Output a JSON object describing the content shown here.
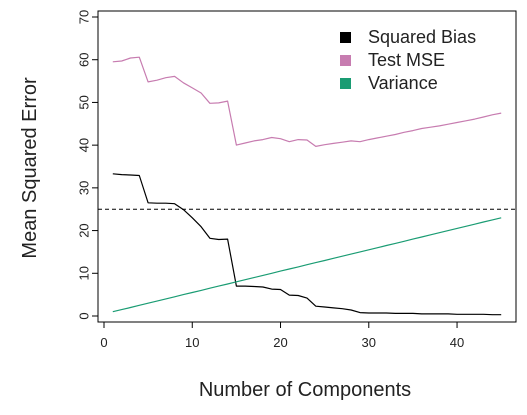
{
  "chart_data": {
    "type": "line",
    "xlabel": "Number of Components",
    "ylabel": "Mean Squared Error",
    "xlim": [
      0,
      46
    ],
    "ylim": [
      0,
      70
    ],
    "xticks": [
      0,
      10,
      20,
      30,
      40
    ],
    "yticks": [
      0,
      10,
      20,
      30,
      40,
      50,
      60,
      70
    ],
    "x_tick_labels": [
      "0",
      "10",
      "20",
      "30",
      "40"
    ],
    "y_tick_labels": [
      "0",
      "10",
      "20",
      "30",
      "40",
      "50",
      "60",
      "70"
    ],
    "grid": false,
    "legend_position": "top-right",
    "reference_line": {
      "y": 25,
      "style": "dashed",
      "color": "#000000"
    },
    "series": [
      {
        "name": "Squared Bias",
        "color": "#000000",
        "x": [
          1,
          2,
          3,
          4,
          5,
          6,
          7,
          8,
          9,
          10,
          11,
          12,
          13,
          14,
          15,
          16,
          17,
          18,
          19,
          20,
          21,
          22,
          23,
          24,
          25,
          26,
          27,
          28,
          29,
          30,
          31,
          32,
          33,
          34,
          35,
          36,
          37,
          38,
          39,
          40,
          41,
          42,
          43,
          44,
          45
        ],
        "y": [
          33.3,
          33.1,
          33.0,
          32.9,
          26.5,
          26.4,
          26.4,
          26.3,
          24.9,
          23.0,
          20.9,
          18.2,
          17.9,
          18.0,
          7.0,
          7.0,
          6.9,
          6.8,
          6.3,
          6.2,
          4.9,
          4.8,
          4.2,
          2.3,
          2.1,
          1.9,
          1.7,
          1.4,
          0.8,
          0.7,
          0.7,
          0.7,
          0.6,
          0.6,
          0.6,
          0.5,
          0.5,
          0.5,
          0.5,
          0.4,
          0.4,
          0.4,
          0.4,
          0.3,
          0.3
        ]
      },
      {
        "name": "Test MSE",
        "color": "#c77cb0",
        "x": [
          1,
          2,
          3,
          4,
          5,
          6,
          7,
          8,
          9,
          10,
          11,
          12,
          13,
          14,
          15,
          16,
          17,
          18,
          19,
          20,
          21,
          22,
          23,
          24,
          25,
          26,
          27,
          28,
          29,
          30,
          31,
          32,
          33,
          34,
          35,
          36,
          37,
          38,
          39,
          40,
          41,
          42,
          43,
          44,
          45
        ],
        "y": [
          59.5,
          59.7,
          60.4,
          60.6,
          54.8,
          55.2,
          55.8,
          56.1,
          54.6,
          53.4,
          52.2,
          49.8,
          49.9,
          50.3,
          40.0,
          40.5,
          41.0,
          41.3,
          41.8,
          41.5,
          40.8,
          41.3,
          41.2,
          39.7,
          40.1,
          40.4,
          40.7,
          41.0,
          40.8,
          41.3,
          41.7,
          42.1,
          42.5,
          43.0,
          43.4,
          43.9,
          44.2,
          44.5,
          44.9,
          45.3,
          45.7,
          46.1,
          46.6,
          47.1,
          47.5
        ]
      },
      {
        "name": "Variance",
        "color": "#1a9c73",
        "x": [
          1,
          2,
          3,
          4,
          5,
          6,
          7,
          8,
          9,
          10,
          11,
          12,
          13,
          14,
          15,
          16,
          17,
          18,
          19,
          20,
          21,
          22,
          23,
          24,
          25,
          26,
          27,
          28,
          29,
          30,
          31,
          32,
          33,
          34,
          35,
          36,
          37,
          38,
          39,
          40,
          41,
          42,
          43,
          44,
          45
        ],
        "y": [
          1.0,
          1.5,
          2.0,
          2.5,
          3.0,
          3.5,
          4.0,
          4.5,
          5.0,
          5.5,
          6.0,
          6.5,
          7.0,
          7.5,
          8.0,
          8.5,
          9.0,
          9.5,
          10.0,
          10.5,
          11.0,
          11.5,
          12.0,
          12.5,
          13.0,
          13.5,
          14.0,
          14.5,
          15.0,
          15.5,
          16.0,
          16.5,
          17.0,
          17.5,
          18.0,
          18.5,
          19.0,
          19.5,
          20.0,
          20.5,
          21.0,
          21.5,
          22.0,
          22.5,
          23.0
        ]
      }
    ]
  }
}
